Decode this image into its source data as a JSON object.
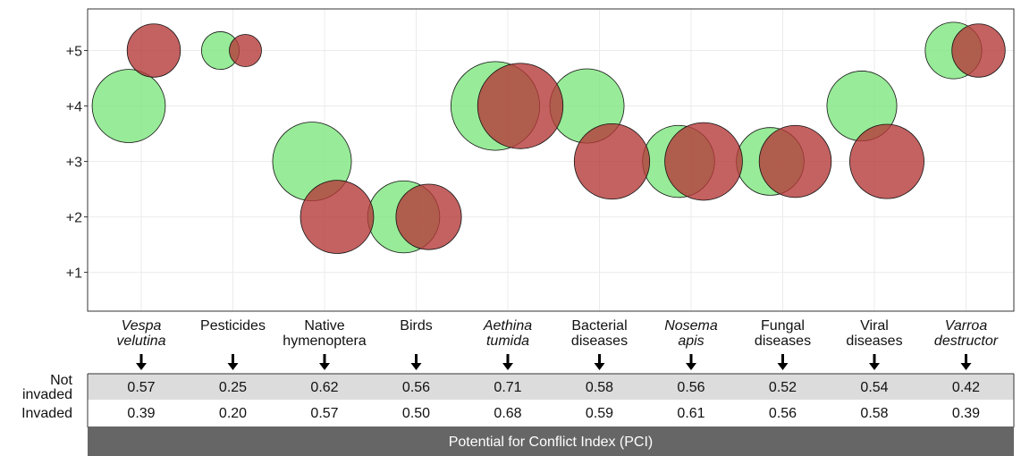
{
  "chart_data": {
    "type": "scatter",
    "title": "",
    "xlabel": "",
    "ylabel": "",
    "y_ticks": [
      "+1",
      "+2",
      "+3",
      "+4",
      "+5"
    ],
    "ylim": [
      0.3,
      5.75
    ],
    "grid": true,
    "categories": [
      {
        "lines": [
          "Vespa",
          "velutina"
        ],
        "italic": true
      },
      {
        "lines": [
          "Pesticides"
        ],
        "italic": false
      },
      {
        "lines": [
          "Native",
          "hymenoptera"
        ],
        "italic": false
      },
      {
        "lines": [
          "Birds"
        ],
        "italic": false
      },
      {
        "lines": [
          "Aethina",
          "tumida"
        ],
        "italic": true
      },
      {
        "lines": [
          "Bacterial",
          "diseases"
        ],
        "italic": false
      },
      {
        "lines": [
          "Nosema",
          "apis"
        ],
        "italic": true
      },
      {
        "lines": [
          "Fungal",
          "diseases"
        ],
        "italic": false
      },
      {
        "lines": [
          "Viral",
          "diseases"
        ],
        "italic": false
      },
      {
        "lines": [
          "Varroa",
          "destructor"
        ],
        "italic": true
      }
    ],
    "series": [
      {
        "key": "not_invaded",
        "color": "#7ee67e",
        "y": [
          4,
          5,
          3,
          2,
          4,
          4,
          3,
          3,
          4,
          5
        ],
        "size": [
          0.57,
          0.25,
          0.62,
          0.56,
          0.71,
          0.58,
          0.56,
          0.52,
          0.54,
          0.42
        ]
      },
      {
        "key": "invaded",
        "color": "#b53a3a",
        "y": [
          5,
          5,
          2,
          2,
          4,
          3,
          3,
          3,
          3,
          5
        ],
        "size": [
          0.39,
          0.2,
          0.57,
          0.5,
          0.68,
          0.59,
          0.61,
          0.56,
          0.58,
          0.39
        ]
      }
    ]
  },
  "table": {
    "rows": [
      {
        "label_lines": [
          "Not",
          "invaded"
        ],
        "values": [
          "0.57",
          "0.25",
          "0.62",
          "0.56",
          "0.71",
          "0.58",
          "0.56",
          "0.52",
          "0.54",
          "0.42"
        ],
        "fill": "#dcdcdc"
      },
      {
        "label_lines": [
          "Invaded"
        ],
        "values": [
          "0.39",
          "0.20",
          "0.57",
          "0.50",
          "0.68",
          "0.59",
          "0.61",
          "0.56",
          "0.58",
          "0.39"
        ],
        "fill": "#ffffff"
      }
    ],
    "footer": "Potential for Conflict Index (PCI)"
  }
}
